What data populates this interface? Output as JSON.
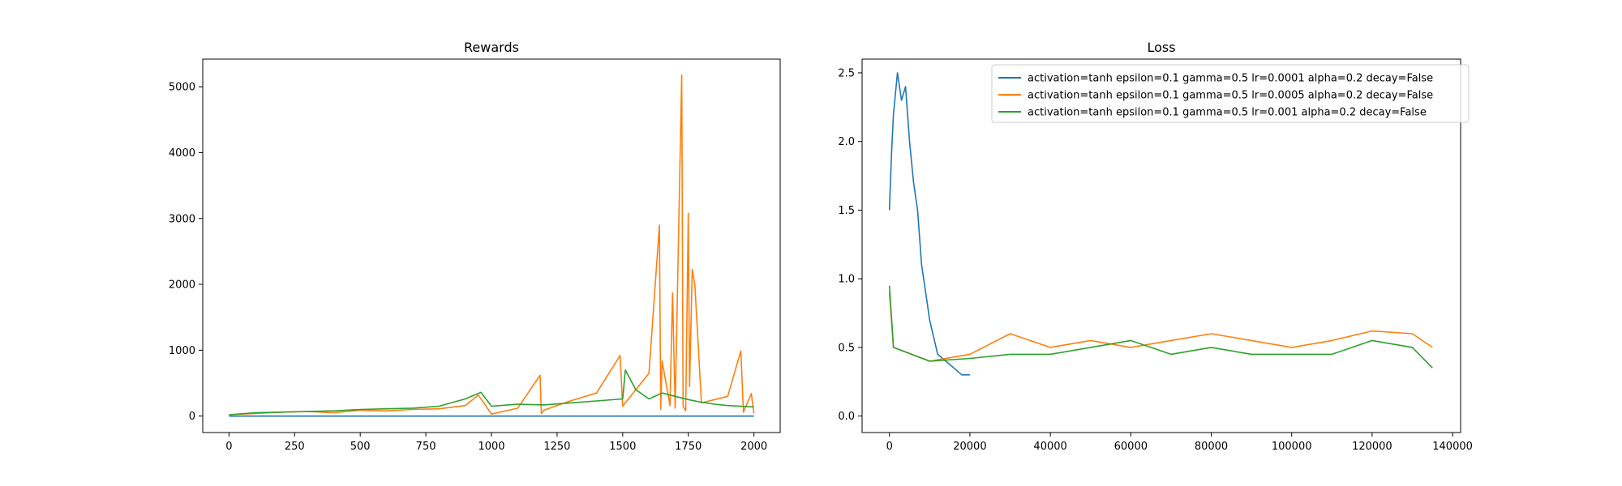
{
  "chart_data": [
    {
      "type": "line",
      "title": "Rewards",
      "xlabel": "",
      "ylabel": "",
      "xlim": [
        -100,
        2100
      ],
      "ylim": [
        -250,
        5420
      ],
      "xticks": [
        0,
        250,
        500,
        750,
        1000,
        1250,
        1500,
        1750,
        2000
      ],
      "yticks": [
        0,
        1000,
        2000,
        3000,
        4000,
        5000
      ],
      "legend": "none",
      "grid": false,
      "series": [
        {
          "color": "#1f77b4",
          "x": [
            0,
            250,
            500,
            750,
            1000,
            1250,
            1500,
            1750,
            2000
          ],
          "y": [
            0,
            0,
            0,
            0,
            0,
            0,
            0,
            0,
            0
          ]
        },
        {
          "color": "#ff7f0e",
          "x": [
            0,
            100,
            200,
            300,
            400,
            500,
            600,
            700,
            800,
            900,
            950,
            1000,
            1100,
            1185,
            1190,
            1200,
            1300,
            1400,
            1490,
            1500,
            1600,
            1640,
            1645,
            1650,
            1680,
            1690,
            1700,
            1725,
            1730,
            1740,
            1750,
            1755,
            1765,
            1775,
            1800,
            1900,
            1950,
            1960,
            1990,
            2000
          ],
          "y": [
            20,
            40,
            60,
            70,
            50,
            90,
            80,
            100,
            110,
            160,
            320,
            30,
            120,
            620,
            40,
            90,
            230,
            350,
            920,
            150,
            650,
            2900,
            100,
            840,
            160,
            1870,
            120,
            5180,
            150,
            80,
            3080,
            450,
            2230,
            1990,
            200,
            300,
            990,
            60,
            340,
            40
          ]
        },
        {
          "color": "#2ca02c",
          "x": [
            0,
            100,
            200,
            300,
            400,
            500,
            600,
            700,
            800,
            900,
            960,
            1000,
            1100,
            1200,
            1300,
            1400,
            1500,
            1510,
            1550,
            1600,
            1650,
            1700,
            1750,
            1800,
            1850,
            1900,
            1950,
            2000
          ],
          "y": [
            20,
            50,
            60,
            70,
            80,
            100,
            110,
            120,
            150,
            260,
            360,
            150,
            180,
            170,
            200,
            230,
            260,
            700,
            400,
            260,
            350,
            300,
            250,
            210,
            180,
            160,
            150,
            140
          ]
        }
      ]
    },
    {
      "type": "line",
      "title": "Loss",
      "xlabel": "",
      "ylabel": "",
      "xlim": [
        -6800,
        142000
      ],
      "ylim": [
        -0.12,
        2.6
      ],
      "xticks": [
        0,
        20000,
        40000,
        60000,
        80000,
        100000,
        120000,
        140000
      ],
      "yticks": [
        0.0,
        0.5,
        1.0,
        1.5,
        2.0,
        2.5
      ],
      "ytick_labels": [
        "0.0",
        "0.5",
        "1.0",
        "1.5",
        "2.0",
        "2.5"
      ],
      "legend": "upper right",
      "grid": false,
      "series": [
        {
          "name": "activation=tanh epsilon=0.1 gamma=0.5 lr=0.0001 alpha=0.2 decay=False",
          "color": "#1f77b4",
          "x": [
            0,
            500,
            1000,
            2000,
            3000,
            4000,
            5000,
            6000,
            7000,
            8000,
            9000,
            10000,
            12000,
            14000,
            16000,
            18000,
            20000
          ],
          "y": [
            1.5,
            1.9,
            2.2,
            2.5,
            2.3,
            2.4,
            2.0,
            1.7,
            1.5,
            1.1,
            0.9,
            0.7,
            0.45,
            0.4,
            0.35,
            0.3,
            0.3
          ]
        },
        {
          "name": "activation=tanh epsilon=0.1 gamma=0.5 lr=0.0005 alpha=0.2 decay=False",
          "color": "#ff7f0e",
          "x": [
            0,
            1000,
            10000,
            20000,
            30000,
            40000,
            50000,
            60000,
            70000,
            80000,
            90000,
            100000,
            110000,
            120000,
            130000,
            135000
          ],
          "y": [
            0.9,
            0.5,
            0.4,
            0.45,
            0.6,
            0.5,
            0.55,
            0.5,
            0.55,
            0.6,
            0.55,
            0.5,
            0.55,
            0.62,
            0.6,
            0.5
          ]
        },
        {
          "name": "activation=tanh epsilon=0.1 gamma=0.5 lr=0.001 alpha=0.2 decay=False",
          "color": "#2ca02c",
          "x": [
            0,
            1000,
            10000,
            20000,
            30000,
            40000,
            50000,
            60000,
            70000,
            80000,
            90000,
            100000,
            110000,
            120000,
            130000,
            135000
          ],
          "y": [
            0.95,
            0.5,
            0.4,
            0.42,
            0.45,
            0.45,
            0.5,
            0.55,
            0.45,
            0.5,
            0.45,
            0.45,
            0.45,
            0.55,
            0.5,
            0.35
          ]
        }
      ]
    }
  ]
}
